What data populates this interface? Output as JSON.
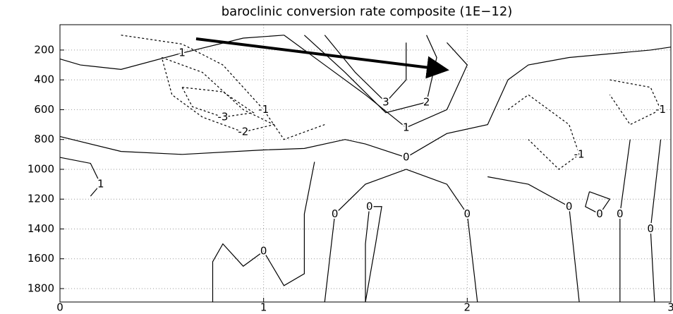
{
  "chart_data": {
    "type": "contour",
    "title": "baroclinic conversion rate composite (1E−12)",
    "xlim": [
      0,
      3
    ],
    "ylim": [
      30,
      1890
    ],
    "y_inverted": true,
    "xticks": [
      0,
      1,
      2,
      3
    ],
    "yticks": [
      200,
      400,
      600,
      800,
      1000,
      1200,
      1400,
      1600,
      1800
    ],
    "grid": true,
    "color": "#000000",
    "contours": [
      {
        "level": 0,
        "x": [
          0,
          0.3,
          0.6,
          1.0,
          1.2,
          1.4,
          1.5,
          1.7,
          1.9,
          2.1,
          2.2,
          2.3,
          2.5,
          2.9,
          3
        ],
        "y": [
          780,
          880,
          900,
          870,
          860,
          800,
          830,
          920,
          760,
          700,
          400,
          300,
          250,
          200,
          180
        ]
      },
      {
        "level": 0,
        "x": [
          1.25,
          1.2,
          1.2,
          1.1,
          1.0,
          0.9,
          0.8,
          0.75,
          0.75
        ],
        "y": [
          950,
          1300,
          1700,
          1780,
          1550,
          1650,
          1500,
          1620,
          1890
        ]
      },
      {
        "level": 0,
        "x": [
          1.7,
          1.5,
          1.35,
          1.3
        ],
        "y": [
          1000,
          1100,
          1300,
          1890
        ]
      },
      {
        "level": 0,
        "x": [
          1.7,
          1.9,
          2.0,
          2.05
        ],
        "y": [
          1000,
          1100,
          1300,
          1890
        ]
      },
      {
        "level": 0,
        "x": [
          1.5,
          1.55,
          1.58,
          1.52,
          1.5,
          1.5
        ],
        "y": [
          1890,
          1500,
          1250,
          1250,
          1500,
          1890
        ]
      },
      {
        "level": 1,
        "x": [
          0,
          0.15,
          0.2,
          0.15
        ],
        "y": [
          920,
          960,
          1100,
          1180
        ]
      },
      {
        "level": 1,
        "x": [
          0,
          0.1,
          0.3,
          0.6,
          0.9,
          1.1
        ],
        "y": [
          260,
          300,
          330,
          220,
          120,
          100
        ]
      },
      {
        "level": -1,
        "x": [
          0.3,
          0.6,
          0.8,
          1.0,
          1.1,
          1.3
        ],
        "y": [
          100,
          160,
          300,
          600,
          800,
          700
        ]
      },
      {
        "level": -2,
        "x": [
          0.5,
          0.7,
          0.9,
          1.05,
          0.9,
          0.7,
          0.55,
          0.5
        ],
        "y": [
          250,
          350,
          600,
          700,
          750,
          650,
          500,
          250
        ]
      },
      {
        "level": -3,
        "x": [
          0.6,
          0.8,
          0.95,
          0.8,
          0.65,
          0.6
        ],
        "y": [
          450,
          480,
          620,
          650,
          580,
          450
        ]
      },
      {
        "level": 1,
        "x": [
          1.1,
          1.3,
          1.5,
          1.7,
          1.9,
          2.0,
          1.9
        ],
        "y": [
          100,
          300,
          500,
          720,
          600,
          300,
          150
        ]
      },
      {
        "level": 2,
        "x": [
          1.2,
          1.4,
          1.6,
          1.8,
          1.85,
          1.8
        ],
        "y": [
          100,
          350,
          620,
          550,
          250,
          100
        ]
      },
      {
        "level": 3,
        "x": [
          1.3,
          1.45,
          1.6,
          1.7,
          1.7
        ],
        "y": [
          100,
          350,
          550,
          400,
          150
        ]
      },
      {
        "level": -1,
        "x": [
          2.2,
          2.3,
          2.5,
          2.55,
          2.45,
          2.3
        ],
        "y": [
          600,
          500,
          700,
          900,
          1000,
          800
        ]
      },
      {
        "level": 0,
        "x": [
          2.8,
          2.75,
          2.75
        ],
        "y": [
          800,
          1300,
          1890
        ]
      },
      {
        "level": 0,
        "x": [
          2.95,
          2.9,
          2.92
        ],
        "y": [
          800,
          1400,
          1890
        ]
      },
      {
        "level": 0,
        "x": [
          2.6,
          2.7,
          2.65,
          2.58,
          2.6
        ],
        "y": [
          1150,
          1200,
          1300,
          1250,
          1150
        ]
      },
      {
        "level": 0,
        "x": [
          2.1,
          2.3,
          2.5,
          2.55
        ],
        "y": [
          1050,
          1100,
          1250,
          1890
        ]
      },
      {
        "level": -1,
        "x": [
          2.7,
          2.9,
          2.95,
          2.8,
          2.7
        ],
        "y": [
          400,
          450,
          600,
          700,
          500
        ]
      }
    ]
  }
}
